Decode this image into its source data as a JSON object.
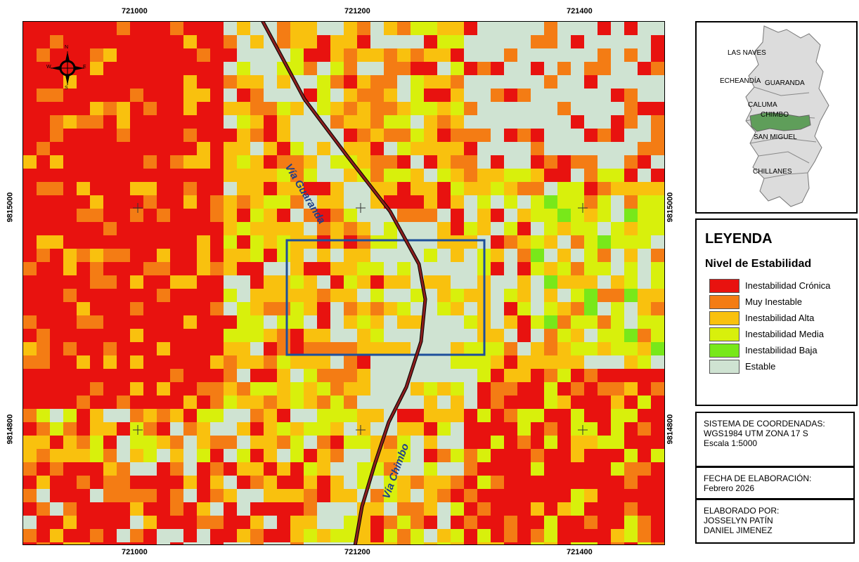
{
  "coordinates": {
    "top_x": [
      "721000",
      "721200",
      "721400"
    ],
    "bottom_x": [
      "721000",
      "721200",
      "721400"
    ],
    "left_y": [
      "9815000",
      "9814800"
    ],
    "right_y": [
      "9815000",
      "9814800"
    ]
  },
  "map": {
    "road_labels": [
      "Vía Guaranda",
      "Vía Chimbo"
    ],
    "north_arrow": {
      "n": "N",
      "s": "S",
      "e": "E",
      "w": "W"
    },
    "colors": {
      "cronica": "#e8120f",
      "muy_inestable": "#f47c14",
      "alta": "#f9c10e",
      "media": "#d8f00c",
      "baja": "#78e81a",
      "estable": "#cfe3d2",
      "road": "#7a1a1a",
      "study_area": "#1d4f9c"
    }
  },
  "inset": {
    "labels": [
      "LAS NAVES",
      "ECHEANDÍA",
      "GUARANDA",
      "CALUMA",
      "CHIMBO",
      "SAN MIGUEL",
      "CHILLANES"
    ],
    "highlight_color": "#5f9e5a",
    "province_color": "#dcdcdc"
  },
  "legend": {
    "title": "LEYENDA",
    "subtitle": "Nivel de Estabilidad",
    "items": [
      {
        "label": "Inestabilidad Crónica",
        "color": "#e8120f"
      },
      {
        "label": "Muy Inestable",
        "color": "#f47c14"
      },
      {
        "label": "Inestabilidad Alta",
        "color": "#f9c10e"
      },
      {
        "label": "Inestabilidad Media",
        "color": "#d8f00c"
      },
      {
        "label": "Inestabilidad Baja",
        "color": "#78e81a"
      },
      {
        "label": "Estable",
        "color": "#cfe3d2"
      }
    ]
  },
  "info": {
    "system_line1": "SISTEMA DE COORDENADAS:",
    "system_line2": "WGS1984 UTM ZONA 17 S",
    "scale": "Escala 1:5000",
    "date_label": "FECHA DE ELABORACIÓN:",
    "date_value": "Febrero 2026",
    "author_label": "ELABORADO POR:",
    "author_1": "JOSSELYN PATÍN",
    "author_2": "DANIEL JIMENEZ"
  }
}
